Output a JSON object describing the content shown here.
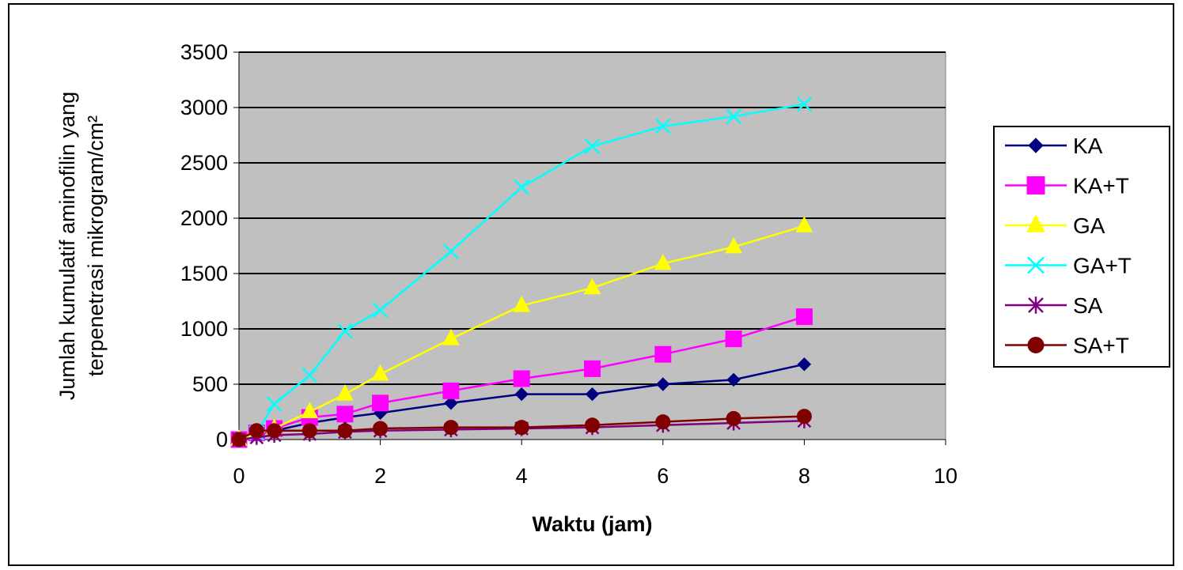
{
  "chart_data": {
    "type": "line",
    "title": "",
    "xlabel": "Waktu (jam)",
    "ylabel_lines": [
      "Jumlah kumulatif aminofilin yang",
      "terpenetrasi mikrogram/cm²"
    ],
    "xlim": [
      0,
      10
    ],
    "ylim": [
      0,
      3500
    ],
    "x_ticks": [
      0,
      2,
      4,
      6,
      8,
      10
    ],
    "y_ticks": [
      0,
      500,
      1000,
      1500,
      2000,
      2500,
      3000,
      3500
    ],
    "grid": "horizontal",
    "plot_background": "#c0c0c0",
    "legend_position": "right",
    "series": [
      {
        "name": "KA",
        "color": "#000080",
        "marker": "diamond",
        "x": [
          0,
          0.25,
          0.5,
          1,
          1.5,
          2,
          3,
          4,
          5,
          6,
          7,
          8
        ],
        "y": [
          0,
          50,
          80,
          150,
          200,
          240,
          330,
          410,
          410,
          500,
          540,
          680
        ]
      },
      {
        "name": "KA+T",
        "color": "#ff00ff",
        "marker": "square",
        "x": [
          0,
          0.25,
          0.5,
          1,
          1.5,
          2,
          3,
          4,
          5,
          6,
          7,
          8
        ],
        "y": [
          0,
          60,
          100,
          200,
          230,
          330,
          440,
          550,
          640,
          770,
          910,
          1110
        ]
      },
      {
        "name": "GA",
        "color": "#ffff00",
        "marker": "triangle",
        "x": [
          0,
          0.5,
          1,
          1.5,
          2,
          3,
          4,
          5,
          6,
          7,
          8
        ],
        "y": [
          0,
          100,
          250,
          410,
          590,
          910,
          1210,
          1370,
          1590,
          1740,
          1930
        ]
      },
      {
        "name": "GA+T",
        "color": "#00ffff",
        "marker": "x",
        "x": [
          0.25,
          0.5,
          1,
          1.5,
          2,
          3,
          4,
          5,
          6,
          7,
          8
        ],
        "y": [
          60,
          320,
          580,
          980,
          1170,
          1700,
          2280,
          2650,
          2830,
          2920,
          3030
        ]
      },
      {
        "name": "SA",
        "color": "#800080",
        "marker": "star",
        "x": [
          0,
          0.25,
          0.5,
          1,
          1.5,
          2,
          3,
          4,
          5,
          6,
          7,
          8
        ],
        "y": [
          0,
          20,
          40,
          50,
          70,
          80,
          90,
          100,
          110,
          130,
          150,
          170
        ]
      },
      {
        "name": "SA+T",
        "color": "#800000",
        "marker": "circle",
        "x": [
          0,
          0.25,
          0.5,
          1,
          1.5,
          2,
          3,
          4,
          5,
          6,
          7,
          8
        ],
        "y": [
          0,
          80,
          80,
          80,
          80,
          100,
          110,
          110,
          130,
          160,
          190,
          210
        ]
      }
    ]
  }
}
